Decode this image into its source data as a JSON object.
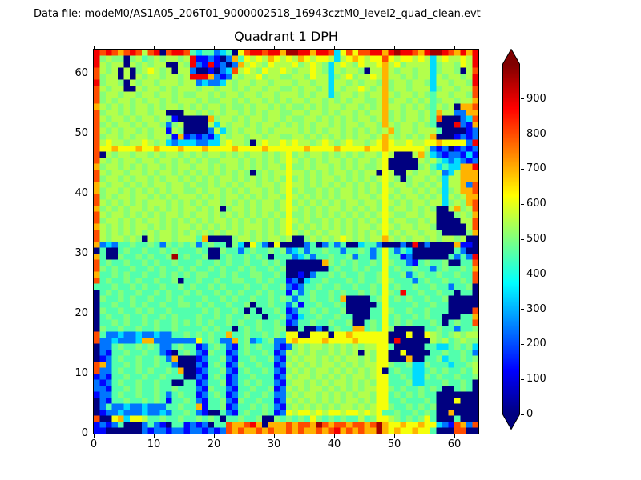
{
  "header": {
    "datafile_label": "Data file: modeM0/AS1A05_206T01_9000002518_16943cztM0_level2_quad_clean.evt"
  },
  "colors": {
    "text": "#000000",
    "background": "#ffffff",
    "axis": "#000000"
  },
  "chart_data": {
    "type": "heatmap",
    "title": "Quadrant 1 DPH",
    "xlim": [
      0,
      64
    ],
    "ylim": [
      0,
      64
    ],
    "x_ticks": [
      0,
      10,
      20,
      30,
      40,
      50,
      60
    ],
    "y_ticks": [
      0,
      10,
      20,
      30,
      40,
      50,
      60
    ],
    "colormap": "jet",
    "vmin": 0,
    "vmax": 1000,
    "colorbar": {
      "ticks": [
        0,
        100,
        200,
        300,
        400,
        500,
        600,
        700,
        800,
        900
      ],
      "extend": "both",
      "over_color": "#800000",
      "under_color": "#000080"
    },
    "value_key": {
      ".": 0,
      "1": 130,
      "2": 240,
      "3": 340,
      "4": 455,
      "5": 505,
      "6": 550,
      "7": 615,
      "8": 700,
      "9": 800,
      "r": 885,
      "R": 965
    },
    "rows_top_to_bottom": [
      "r9r989r969r.9rr94344234.79rr9rr8RRrr8rr9379799rr8rRrr98rRRr98r8r",
      "r5655.5645656656r1121.28476768767687677636787677976776763676676r",
      "r6566.656566..65r21r12.2867657666756765367657667867566663566576r",
      "9656.6.567656.662..1.239676576676566765365665.668656656635665.69",
      "9566.6.656656656rrr82126566756655665766356756676866565663656656r",
      "r5665.65665666566232236566566566656656636656566585665665366566 5r",
      "96566..65665656665665665656656655656656365667656856656 6635665669",
      "9566566566566565566565665665665666565663566565668656656546656659",
      "9565665656656566656556656566565656656656565665568566565645665668",
      "86565656656566565656656556566565655656566566565686 6565654656.889",
      "956656566566...665656566565656655665665656656566856566564 8662288",
      "96566565665651.....85665656656656556656565656656856566 5649...239",
      "956566565665256....63656656566565656566565665665865665654...r218",
      "965656656566165....263565665656666565656656565656856656664....122",
      "95665656656651812121365665665665566565656565665686565656 8...1212",
      "96766566765632333223367665.676676766567656766567876676677877772r",
      "9778777877877787778777787777877777787777877778778777777 6212.1212",
      "9.656656656566565656656565665656756566565 656566576...68532122131",
      "9656566566566565656556665656565676565656656566567.....6564323212",
      "8566565656656566566565665656566575565665656565567.....564343388r",
      "96566566565665656565656565.56566766565656656566.76..656656236888",
      "95665656656566565656566565656565756565665656565 6765.566565366888",
      "8656656565665665655656565665665676656565656565657566565656366829",
      "8566565656565665565665656566565675655656566565657656656565356889",
      "9565665665656566656565665656566576565656566566567565665656365688",
      "9656565656665656565665656565665675656565656656657656566566356589",
      "856565665656565665656.56656566567656565665656565756656565..68569",
      "96566565656566565665656565656565755656565 6565656765566566...5658",
      "9566565656656565656566565656565676565565656565657566556 56....669",
      "86565656656565665656565656665656756565656 5656656765665665.....69",
      "9656565656566565656565665656565676565656 656565657565665665....58",
      "96566565.6566566648....56656566 56..565656765656686565665656656..",
      "8232445445425454524544.53.742.7....24.2424..3442...2.r.2....811.",
      ".4..454454454544454..544245445452342445442445424 74243.......42..",
      "84..544545445R45445..45445454.44423424454452442474412......4242r",
      "9454454454544544454454544544545 4......854545445475442145445..449",
      "95454454454544545445454454544545.......4544545447454454424544548",
      "84454544544545454554454544554454..1.2445454454457445245445445449",
      "94544545445445.4454454455445454412.34454445454457544424544544549",
      "44454454544544545445454445445445212445445445445 4745445445442445.",
      ".4545445445454454544545454454544142454454544545 4754r44544544.44.",
      ".5445454454454544454454544544545424454454 8....4574545445445.....",
      ".44544545445445545454454 45.445442414454454.....474444544544.....",
      ".544544545445444445454454.4.44541244545445....4475445445444....9",
      ".45445445445454445445454 4544.44521344544544...447454454544...448",
      ".445454454544545454544545445445412445445445..4547454544454.45449",
      ".5445445445445444454544.45454455..4..2.45448845475.....445442445",
      "94223223223224454545448445445454 77..777.778777777...7..765456566",
      "922322238822222227454228452345227877778777787777 7.r.....65645655",
      ".2245445454224544124542145454421256566565 656566774.....443345453",
      ".214454454421.454215441245445412656565565656.6577..7....44544542",
      ".1245445445428...1244521445445215656656565665657 7...8..445344545",
      "98244545445442...214541254454412656565665 65656677544533544434456",
      "922454454544548..1244521454454215656566565656567.454433454544546",
      "121445445445444..2145412445444126566565656566567 7445433545445445",
      "2124544544544..441244512454544215665656566565657744453344454454.",
      "221445454454454442154421445445126565665656565667 7545445454..454.",
      "12245445445424544124541245445422565665656565665 7745454544.......",
      ".2144544545414454214452154454412656565656 5665657744544454...7...",
      ".24223223222445448144512445454215656565656656567 754454545.......",
      ".1223222322324454 21..421454454127677676776776767445445454..8....",
      "9..783776445445445454.445445..545454754545446457765454574...4...",
      "12124...2421.441212.449889r8.88898998R989989989R877877877 3219829",
      "11......212212212212129898898988 98988989r898988R878778774...99.."
    ]
  }
}
